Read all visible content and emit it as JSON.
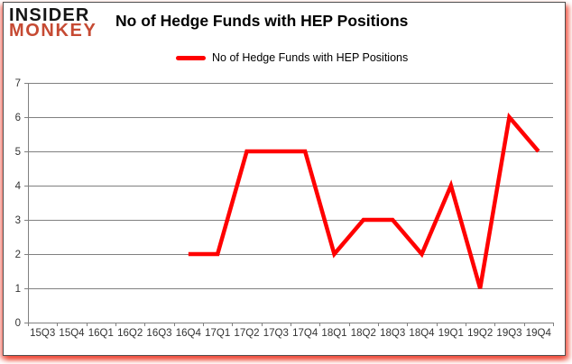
{
  "logo": {
    "line1": "INSIDER",
    "line2": "MONKEY"
  },
  "header": {
    "title": "No of Hedge Funds with HEP Positions"
  },
  "legend": {
    "label": "No of Hedge Funds with HEP Positions",
    "swatch_color": "#ff0000"
  },
  "chart_data": {
    "type": "line",
    "title": "No of Hedge Funds with HEP Positions",
    "categories": [
      "15Q3",
      "15Q4",
      "16Q1",
      "16Q2",
      "16Q3",
      "16Q4",
      "17Q1",
      "17Q2",
      "17Q3",
      "17Q4",
      "18Q1",
      "18Q2",
      "18Q3",
      "18Q4",
      "19Q1",
      "19Q2",
      "19Q3",
      "19Q4"
    ],
    "series": [
      {
        "name": "No of Hedge Funds with HEP Positions",
        "color": "#ff0000",
        "values": [
          null,
          null,
          null,
          null,
          null,
          2,
          2,
          5,
          5,
          5,
          2,
          3,
          3,
          2,
          4,
          1,
          6,
          5
        ]
      }
    ],
    "ylim": [
      0,
      7
    ],
    "y_ticks": [
      0,
      1,
      2,
      3,
      4,
      5,
      6,
      7
    ],
    "grid": true,
    "legend_position": "top"
  },
  "colors": {
    "series_red": "#ff0000",
    "logo_red": "#c64a33",
    "grid_gray": "#808080",
    "axis_text": "#333333",
    "frame_border": "#4f4f4f",
    "glow_red": "#ec301c"
  }
}
